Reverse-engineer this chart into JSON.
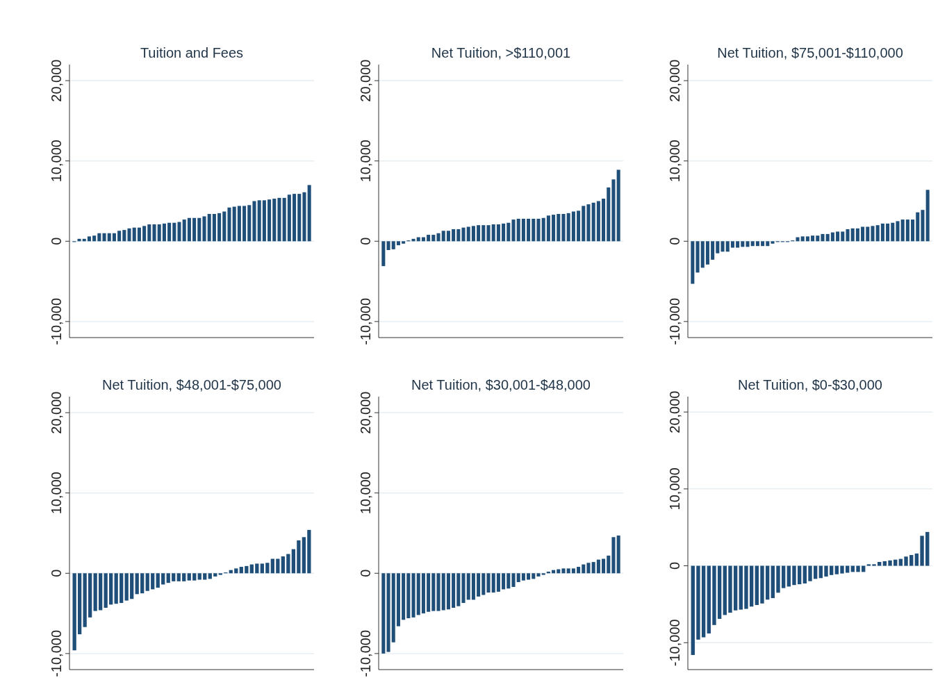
{
  "chart_data": [
    {
      "type": "bar",
      "title": "Tuition and Fees",
      "color": "#1f4e79",
      "ylim": [
        -12000,
        22000
      ],
      "yticks": [
        {
          "value": -10000,
          "label": "-10,000"
        },
        {
          "value": 0,
          "label": "0"
        },
        {
          "value": 10000,
          "label": "10,000"
        },
        {
          "value": 20000,
          "label": "20,000"
        }
      ],
      "grid": "y",
      "tick_labels": "y",
      "categories": [
        null,
        null,
        null,
        null,
        null,
        null,
        null,
        null,
        null,
        null,
        null,
        null,
        null,
        null,
        null,
        null,
        null,
        null,
        null,
        null,
        null,
        null,
        null,
        null,
        null,
        null,
        null,
        null,
        null,
        null,
        null,
        null,
        null,
        null,
        null,
        null,
        null,
        null,
        null,
        null,
        null,
        null,
        null,
        null,
        null,
        null,
        null,
        null
      ],
      "values": [
        -100,
        300,
        300,
        600,
        700,
        1000,
        1000,
        1000,
        1000,
        1300,
        1400,
        1600,
        1700,
        1700,
        1900,
        2100,
        2100,
        2100,
        2200,
        2300,
        2300,
        2400,
        2700,
        2900,
        2900,
        2900,
        3100,
        3400,
        3400,
        3500,
        3700,
        4200,
        4300,
        4400,
        4400,
        4500,
        5000,
        5100,
        5100,
        5200,
        5300,
        5400,
        5400,
        5800,
        5900,
        5900,
        6100,
        7000
      ]
    },
    {
      "type": "bar",
      "title": "Net Tuition, >$110,001",
      "color": "#1f4e79",
      "ylim": [
        -12000,
        22000
      ],
      "yticks": [
        {
          "value": -10000,
          "label": "-10,000"
        },
        {
          "value": 0,
          "label": "0"
        },
        {
          "value": 10000,
          "label": "10,000"
        },
        {
          "value": 20000,
          "label": "20,000"
        }
      ],
      "grid": "y",
      "tick_labels": "y",
      "categories": [
        null,
        null,
        null,
        null,
        null,
        null,
        null,
        null,
        null,
        null,
        null,
        null,
        null,
        null,
        null,
        null,
        null,
        null,
        null,
        null,
        null,
        null,
        null,
        null,
        null,
        null,
        null,
        null,
        null,
        null,
        null,
        null,
        null,
        null,
        null,
        null,
        null,
        null,
        null,
        null,
        null,
        null,
        null,
        null,
        null,
        null,
        null,
        null
      ],
      "values": [
        -3100,
        -1100,
        -1000,
        -500,
        -300,
        100,
        300,
        500,
        500,
        800,
        800,
        1000,
        1300,
        1300,
        1500,
        1500,
        1700,
        1800,
        1900,
        2000,
        2000,
        2000,
        2100,
        2100,
        2200,
        2300,
        2700,
        2800,
        2800,
        2800,
        2800,
        2800,
        2900,
        3200,
        3300,
        3400,
        3400,
        3500,
        3700,
        3800,
        4400,
        4600,
        4800,
        5000,
        5300,
        6700,
        7700,
        8900
      ]
    },
    {
      "type": "bar",
      "title": "Net Tuition, $75,001-$110,000",
      "color": "#1f4e79",
      "ylim": [
        -12000,
        22000
      ],
      "yticks": [
        {
          "value": -10000,
          "label": "-10,000"
        },
        {
          "value": 0,
          "label": "0"
        },
        {
          "value": 10000,
          "label": "10,000"
        },
        {
          "value": 20000,
          "label": "20,000"
        }
      ],
      "grid": "y",
      "tick_labels": "y",
      "categories": [
        null,
        null,
        null,
        null,
        null,
        null,
        null,
        null,
        null,
        null,
        null,
        null,
        null,
        null,
        null,
        null,
        null,
        null,
        null,
        null,
        null,
        null,
        null,
        null,
        null,
        null,
        null,
        null,
        null,
        null,
        null,
        null,
        null,
        null,
        null,
        null,
        null,
        null,
        null,
        null,
        null,
        null,
        null,
        null,
        null,
        null,
        null,
        null
      ],
      "values": [
        -5300,
        -3900,
        -3300,
        -2900,
        -2300,
        -1500,
        -1300,
        -1300,
        -800,
        -800,
        -700,
        -700,
        -600,
        -600,
        -600,
        -600,
        -300,
        -100,
        -100,
        -100,
        100,
        500,
        600,
        600,
        700,
        700,
        900,
        900,
        1100,
        1200,
        1200,
        1500,
        1600,
        1600,
        1800,
        1800,
        1900,
        2000,
        2200,
        2200,
        2300,
        2500,
        2700,
        2700,
        2700,
        3600,
        3900,
        6400
      ]
    },
    {
      "type": "bar",
      "title": "Net Tuition, $48,001-$75,000",
      "color": "#1f4e79",
      "ylim": [
        -12000,
        22000
      ],
      "yticks": [
        {
          "value": -10000,
          "label": "-10,000"
        },
        {
          "value": 0,
          "label": "0"
        },
        {
          "value": 10000,
          "label": "10,000"
        },
        {
          "value": 20000,
          "label": "20,000"
        }
      ],
      "grid": "y",
      "tick_labels": "y",
      "categories": [
        null,
        null,
        null,
        null,
        null,
        null,
        null,
        null,
        null,
        null,
        null,
        null,
        null,
        null,
        null,
        null,
        null,
        null,
        null,
        null,
        null,
        null,
        null,
        null,
        null,
        null,
        null,
        null,
        null,
        null,
        null,
        null,
        null,
        null,
        null,
        null,
        null,
        null,
        null,
        null,
        null,
        null,
        null,
        null,
        null,
        null
      ],
      "values": [
        -9600,
        -7600,
        -6700,
        -5500,
        -4700,
        -4600,
        -4300,
        -3900,
        -3800,
        -3700,
        -3400,
        -3200,
        -2600,
        -2500,
        -2200,
        -2000,
        -1800,
        -1400,
        -1200,
        -1000,
        -1000,
        -1000,
        -900,
        -900,
        -800,
        -800,
        -700,
        -400,
        -200,
        100,
        400,
        600,
        800,
        900,
        1100,
        1200,
        1200,
        1300,
        1800,
        1800,
        2100,
        2400,
        3000,
        4100,
        4500,
        5400
      ]
    },
    {
      "type": "bar",
      "title": "Net Tuition, $30,001-$48,000",
      "color": "#1f4e79",
      "ylim": [
        -12000,
        22000
      ],
      "yticks": [
        {
          "value": -10000,
          "label": "-10,000"
        },
        {
          "value": 0,
          "label": "0"
        },
        {
          "value": 10000,
          "label": "10,000"
        },
        {
          "value": 20000,
          "label": "20,000"
        }
      ],
      "grid": "y",
      "tick_labels": "y",
      "categories": [
        null,
        null,
        null,
        null,
        null,
        null,
        null,
        null,
        null,
        null,
        null,
        null,
        null,
        null,
        null,
        null,
        null,
        null,
        null,
        null,
        null,
        null,
        null,
        null,
        null,
        null,
        null,
        null,
        null,
        null,
        null,
        null,
        null,
        null,
        null,
        null,
        null,
        null,
        null,
        null,
        null,
        null,
        null,
        null,
        null,
        null,
        null,
        null
      ],
      "values": [
        -10000,
        -9800,
        -8600,
        -6600,
        -5800,
        -5600,
        -5500,
        -5200,
        -5000,
        -4800,
        -4700,
        -4700,
        -4600,
        -4500,
        -4300,
        -4100,
        -3700,
        -3300,
        -3300,
        -2900,
        -2700,
        -2400,
        -2400,
        -2300,
        -2000,
        -1900,
        -1700,
        -1100,
        -900,
        -800,
        -700,
        -400,
        -200,
        200,
        400,
        500,
        600,
        600,
        600,
        800,
        1100,
        1300,
        1400,
        1700,
        1800,
        2200,
        4500,
        4700
      ]
    },
    {
      "type": "bar",
      "title": "Net Tuition, $0-$30,000",
      "color": "#1f4e79",
      "ylim": [
        -13500,
        22000
      ],
      "yticks": [
        {
          "value": -10000,
          "label": "-10,000"
        },
        {
          "value": 0,
          "label": "0"
        },
        {
          "value": 10000,
          "label": "10,000"
        },
        {
          "value": 20000,
          "label": "20,000"
        }
      ],
      "grid": "y",
      "tick_labels": "y",
      "categories": [
        null,
        null,
        null,
        null,
        null,
        null,
        null,
        null,
        null,
        null,
        null,
        null,
        null,
        null,
        null,
        null,
        null,
        null,
        null,
        null,
        null,
        null,
        null,
        null,
        null,
        null,
        null,
        null,
        null,
        null,
        null,
        null,
        null,
        null,
        null,
        null,
        null,
        null,
        null,
        null,
        null,
        null,
        null,
        null,
        null
      ],
      "values": [
        -11600,
        -9600,
        -9300,
        -8800,
        -7700,
        -6900,
        -6400,
        -6100,
        -5800,
        -5700,
        -5600,
        -5300,
        -5100,
        -4900,
        -4400,
        -4200,
        -3500,
        -2900,
        -2700,
        -2500,
        -2400,
        -2300,
        -2000,
        -1700,
        -1600,
        -1400,
        -1200,
        -1100,
        -1000,
        -900,
        -800,
        -800,
        -800,
        200,
        200,
        500,
        600,
        700,
        800,
        900,
        1200,
        1400,
        1600,
        3900,
        4400
      ]
    }
  ]
}
